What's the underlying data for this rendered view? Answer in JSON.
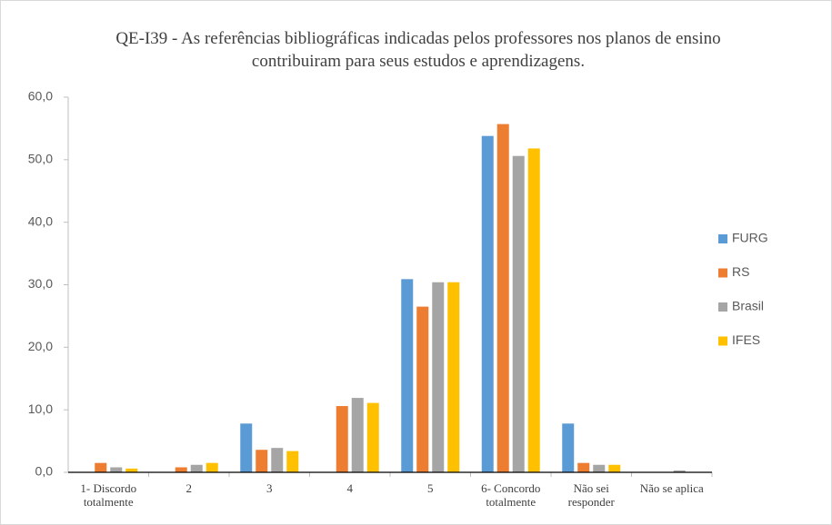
{
  "chart_data": {
    "type": "bar",
    "title": "QE-I39 - As referências bibliográficas indicadas pelos professores nos planos de ensino contribuiram para seus estudos e aprendizagens.",
    "categories": [
      "1- Discordo totalmente",
      "2",
      "3",
      "4",
      "5",
      "6- Concordo totalmente",
      "Não sei responder",
      "Não se aplica"
    ],
    "series": [
      {
        "name": "FURG",
        "color": "#5b9bd5",
        "values": [
          0,
          0,
          7.8,
          0,
          30.9,
          53.8,
          7.8,
          0
        ]
      },
      {
        "name": "RS",
        "color": "#ed7d31",
        "values": [
          1.5,
          0.8,
          3.6,
          10.6,
          26.5,
          55.7,
          1.5,
          0
        ]
      },
      {
        "name": "Brasil",
        "color": "#a5a5a5",
        "values": [
          0.8,
          1.2,
          3.9,
          11.9,
          30.4,
          50.6,
          1.2,
          0.3
        ]
      },
      {
        "name": "IFES",
        "color": "#ffc000",
        "values": [
          0.6,
          1.5,
          3.4,
          11.1,
          30.4,
          51.8,
          1.2,
          0
        ]
      }
    ],
    "ylim": [
      0,
      60
    ],
    "yticks": [
      {
        "value": 0,
        "label": "0,0"
      },
      {
        "value": 10,
        "label": "10,0"
      },
      {
        "value": 20,
        "label": "20,0"
      },
      {
        "value": 30,
        "label": "30,0"
      },
      {
        "value": 40,
        "label": "40,0"
      },
      {
        "value": 50,
        "label": "50,0"
      },
      {
        "value": 60,
        "label": "60,0"
      }
    ],
    "grid": false,
    "legend": "right"
  }
}
